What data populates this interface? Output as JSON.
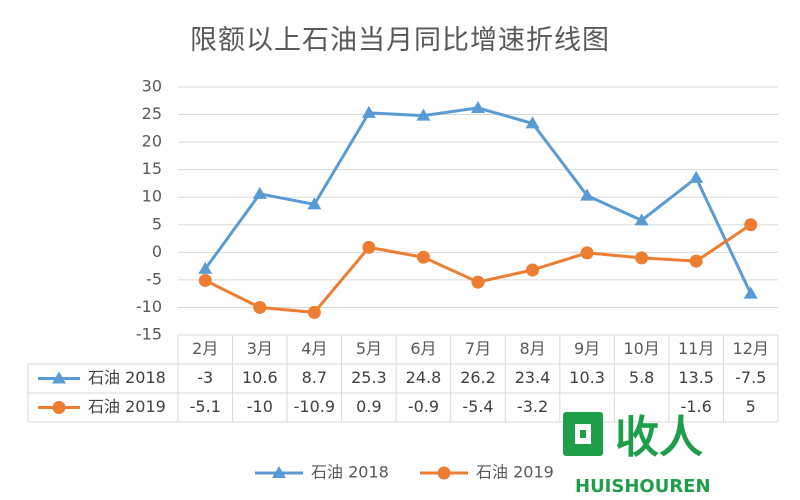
{
  "chart_data": {
    "type": "line",
    "title": "限额以上石油当月同比增速折线图",
    "categories": [
      "2月",
      "3月",
      "4月",
      "5月",
      "6月",
      "7月",
      "8月",
      "9月",
      "10月",
      "11月",
      "12月"
    ],
    "series": [
      {
        "name": "石油 2018",
        "color": "#5B9BD5",
        "marker": "triangle",
        "values": [
          -3,
          10.6,
          8.7,
          25.3,
          24.8,
          26.2,
          23.4,
          10.3,
          5.8,
          13.5,
          -7.5
        ]
      },
      {
        "name": "石油 2019",
        "color": "#ED7D31",
        "marker": "circle",
        "values": [
          -5.1,
          -10,
          -10.9,
          0.9,
          -0.9,
          -5.4,
          -3.2,
          -0.1,
          -1,
          -1.6,
          5
        ]
      }
    ],
    "table_labels": [
      [
        "-3",
        "10.6",
        "8.7",
        "25.3",
        "24.8",
        "26.2",
        "23.4",
        "10.3",
        "5.8",
        "13.5",
        "-7.5"
      ],
      [
        "-5.1",
        "-10",
        "-10.9",
        "0.9",
        "-0.9",
        "-5.4",
        "-3.2",
        "",
        "",
        "-1.6",
        "5"
      ]
    ],
    "ylim": [
      -15,
      30
    ],
    "yticks": [
      30,
      25,
      20,
      15,
      10,
      5,
      0,
      -5,
      -10,
      -15
    ],
    "grid": true,
    "legend": "bottom",
    "data_table": true
  },
  "watermark": {
    "main": "回收人",
    "sub": "HUISHOUREN"
  }
}
